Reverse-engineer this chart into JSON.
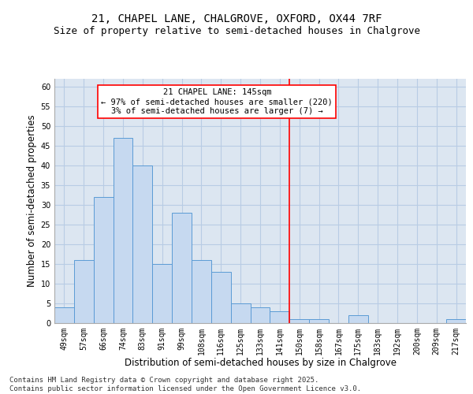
{
  "title_line1": "21, CHAPEL LANE, CHALGROVE, OXFORD, OX44 7RF",
  "title_line2": "Size of property relative to semi-detached houses in Chalgrove",
  "xlabel": "Distribution of semi-detached houses by size in Chalgrove",
  "ylabel": "Number of semi-detached properties",
  "footnote": "Contains HM Land Registry data © Crown copyright and database right 2025.\nContains public sector information licensed under the Open Government Licence v3.0.",
  "categories": [
    "49sqm",
    "57sqm",
    "66sqm",
    "74sqm",
    "83sqm",
    "91sqm",
    "99sqm",
    "108sqm",
    "116sqm",
    "125sqm",
    "133sqm",
    "141sqm",
    "150sqm",
    "158sqm",
    "167sqm",
    "175sqm",
    "183sqm",
    "192sqm",
    "200sqm",
    "209sqm",
    "217sqm"
  ],
  "values": [
    4,
    16,
    32,
    47,
    40,
    15,
    28,
    16,
    13,
    5,
    4,
    3,
    1,
    1,
    0,
    2,
    0,
    0,
    0,
    0,
    1
  ],
  "bar_color": "#c6d9f0",
  "bar_edge_color": "#5b9bd5",
  "grid_color": "#b8cce4",
  "background_color": "#dce6f1",
  "annotation_line1": "21 CHAPEL LANE: 145sqm",
  "annotation_line2": "← 97% of semi-detached houses are smaller (220)",
  "annotation_line3": "3% of semi-detached houses are larger (7) →",
  "vline_x_index": 11.5,
  "ylim": [
    0,
    62
  ],
  "yticks": [
    0,
    5,
    10,
    15,
    20,
    25,
    30,
    35,
    40,
    45,
    50,
    55,
    60
  ],
  "title_fontsize": 10,
  "subtitle_fontsize": 9,
  "axis_label_fontsize": 8.5,
  "tick_fontsize": 7,
  "footnote_fontsize": 6.5,
  "annotation_fontsize": 7.5
}
